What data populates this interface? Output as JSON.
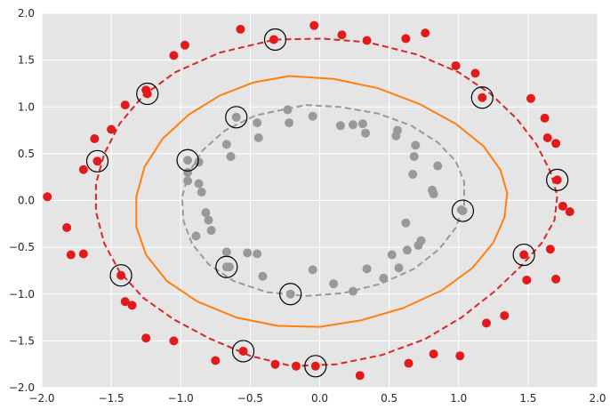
{
  "chart_data": {
    "type": "scatter",
    "title": "",
    "xlabel": "",
    "ylabel": "",
    "xlim": [
      -2.0,
      2.0
    ],
    "ylim": [
      -2.0,
      2.0
    ],
    "grid": true,
    "x_ticks": [
      "−2.0",
      "−1.5",
      "−1.0",
      "−0.5",
      "0.0",
      "0.5",
      "1.0",
      "1.5",
      "2.0"
    ],
    "x_tick_values": [
      -2.0,
      -1.5,
      -1.0,
      -0.5,
      0.0,
      0.5,
      1.0,
      1.5,
      2.0
    ],
    "y_ticks": [
      "2.0",
      "1.5",
      "1.0",
      "0.5",
      "0.0",
      "−0.5",
      "−1.0",
      "−1.5",
      "−2.0"
    ],
    "y_tick_values": [
      2.0,
      1.5,
      1.0,
      0.5,
      0.0,
      -0.5,
      -1.0,
      -1.5,
      -2.0
    ],
    "colors": {
      "background": "#e5e5e5",
      "grid": "#ffffff",
      "outer_points": "#e31a1c",
      "inner_points": "#999999",
      "outer_boundary": "#d62728",
      "decision_boundary": "#ff7f0e",
      "inner_boundary": "#999999",
      "support_vector_ring": "#000000"
    },
    "series": [
      {
        "points": [
          [
            -1.96,
            0.04
          ],
          [
            -1.82,
            -0.29
          ],
          [
            -1.79,
            -0.58
          ],
          [
            -1.7,
            0.33
          ],
          [
            -1.7,
            -0.57
          ],
          [
            -1.62,
            0.66
          ],
          [
            -1.6,
            0.42
          ],
          [
            -1.5,
            0.76
          ],
          [
            -1.43,
            -0.8
          ],
          [
            -1.4,
            1.02
          ],
          [
            -1.4,
            -1.08
          ],
          [
            -1.35,
            -1.12
          ],
          [
            -1.25,
            1.18
          ],
          [
            -1.24,
            1.14
          ],
          [
            -1.25,
            -1.47
          ],
          [
            -1.05,
            1.55
          ],
          [
            -1.05,
            -1.5
          ],
          [
            -0.97,
            1.66
          ],
          [
            -0.75,
            -1.71
          ],
          [
            -0.57,
            1.83
          ],
          [
            -0.55,
            -1.61
          ],
          [
            -0.33,
            1.72
          ],
          [
            -0.32,
            -1.75
          ],
          [
            -0.17,
            -1.77
          ],
          [
            -0.04,
            1.87
          ],
          [
            -0.03,
            -1.77
          ],
          [
            0.16,
            1.77
          ],
          [
            0.29,
            -1.87
          ],
          [
            0.34,
            1.71
          ],
          [
            0.62,
            1.73
          ],
          [
            0.64,
            -1.74
          ],
          [
            0.76,
            1.79
          ],
          [
            0.82,
            -1.64
          ],
          [
            0.98,
            1.44
          ],
          [
            1.01,
            -1.66
          ],
          [
            1.12,
            1.36
          ],
          [
            1.17,
            1.1
          ],
          [
            1.2,
            -1.31
          ],
          [
            1.33,
            -1.23
          ],
          [
            1.47,
            -0.58
          ],
          [
            1.49,
            -0.85
          ],
          [
            1.52,
            1.09
          ],
          [
            1.62,
            0.88
          ],
          [
            1.64,
            0.67
          ],
          [
            1.66,
            -0.52
          ],
          [
            1.7,
            0.61
          ],
          [
            1.7,
            -0.84
          ],
          [
            1.71,
            0.22
          ],
          [
            1.75,
            -0.06
          ],
          [
            1.8,
            -0.12
          ]
        ]
      },
      {
        "points": [
          [
            -0.95,
            0.43
          ],
          [
            -0.95,
            0.3
          ],
          [
            -0.95,
            0.21
          ],
          [
            -0.89,
            -0.38
          ],
          [
            -0.87,
            0.41
          ],
          [
            -0.87,
            0.18
          ],
          [
            -0.85,
            0.09
          ],
          [
            -0.82,
            -0.13
          ],
          [
            -0.8,
            -0.21
          ],
          [
            -0.78,
            -0.32
          ],
          [
            -0.67,
            0.6
          ],
          [
            -0.67,
            -0.55
          ],
          [
            -0.67,
            -0.71
          ],
          [
            -0.65,
            -0.71
          ],
          [
            -0.64,
            0.47
          ],
          [
            -0.6,
            0.89
          ],
          [
            -0.52,
            -0.56
          ],
          [
            -0.45,
            0.83
          ],
          [
            -0.44,
            0.67
          ],
          [
            -0.45,
            -0.57
          ],
          [
            -0.41,
            -0.81
          ],
          [
            -0.23,
            0.97
          ],
          [
            -0.22,
            0.83
          ],
          [
            -0.21,
            -1.0
          ],
          [
            -0.05,
            0.9
          ],
          [
            -0.05,
            -0.74
          ],
          [
            0.1,
            -0.89
          ],
          [
            0.15,
            0.8
          ],
          [
            0.24,
            -0.97
          ],
          [
            0.24,
            0.81
          ],
          [
            0.31,
            0.82
          ],
          [
            0.33,
            0.72
          ],
          [
            0.34,
            -0.73
          ],
          [
            0.46,
            -0.83
          ],
          [
            0.52,
            -0.58
          ],
          [
            0.55,
            0.69
          ],
          [
            0.56,
            0.75
          ],
          [
            0.57,
            -0.72
          ],
          [
            0.62,
            -0.24
          ],
          [
            0.63,
            -0.53
          ],
          [
            0.67,
            0.28
          ],
          [
            0.68,
            0.47
          ],
          [
            0.69,
            0.59
          ],
          [
            0.71,
            -0.48
          ],
          [
            0.73,
            -0.43
          ],
          [
            0.81,
            0.11
          ],
          [
            0.82,
            0.07
          ],
          [
            0.85,
            0.37
          ],
          [
            1.02,
            -0.1
          ],
          [
            1.03,
            -0.11
          ]
        ]
      }
    ],
    "support_vectors": [
      [
        -1.6,
        0.42
      ],
      [
        -1.43,
        -0.8
      ],
      [
        -1.24,
        1.14
      ],
      [
        -0.55,
        -1.61
      ],
      [
        -0.32,
        1.72
      ],
      [
        -0.03,
        -1.77
      ],
      [
        1.17,
        1.1
      ],
      [
        1.47,
        -0.58
      ],
      [
        1.71,
        0.22
      ],
      [
        -0.95,
        0.43
      ],
      [
        -0.67,
        -0.71
      ],
      [
        -0.6,
        0.89
      ],
      [
        -0.21,
        -1.0
      ],
      [
        1.03,
        -0.11
      ]
    ],
    "contours": [
      {
        "style": "dashed",
        "points": [
          [
            -0.32,
            1.72
          ],
          [
            0.02,
            1.73
          ],
          [
            0.35,
            1.69
          ],
          [
            0.7,
            1.56
          ],
          [
            1.0,
            1.37
          ],
          [
            1.23,
            1.14
          ],
          [
            1.42,
            0.87
          ],
          [
            1.56,
            0.6
          ],
          [
            1.66,
            0.31
          ],
          [
            1.71,
            0.05
          ],
          [
            1.69,
            -0.21
          ],
          [
            1.6,
            -0.45
          ],
          [
            1.45,
            -0.7
          ],
          [
            1.26,
            -0.97
          ],
          [
            1.02,
            -1.25
          ],
          [
            0.76,
            -1.48
          ],
          [
            0.45,
            -1.65
          ],
          [
            0.12,
            -1.75
          ],
          [
            -0.2,
            -1.77
          ],
          [
            -0.5,
            -1.66
          ],
          [
            -0.8,
            -1.47
          ],
          [
            -1.05,
            -1.27
          ],
          [
            -1.27,
            -1.04
          ],
          [
            -1.44,
            -0.76
          ],
          [
            -1.55,
            -0.46
          ],
          [
            -1.61,
            -0.12
          ],
          [
            -1.61,
            0.18
          ],
          [
            -1.55,
            0.5
          ],
          [
            -1.44,
            0.82
          ],
          [
            -1.27,
            1.12
          ],
          [
            -1.04,
            1.37
          ],
          [
            -0.72,
            1.58
          ],
          [
            -0.32,
            1.72
          ]
        ]
      },
      {
        "style": "solid",
        "points": [
          [
            -0.22,
            1.33
          ],
          [
            0.1,
            1.3
          ],
          [
            0.42,
            1.2
          ],
          [
            0.72,
            1.03
          ],
          [
            0.98,
            0.82
          ],
          [
            1.18,
            0.58
          ],
          [
            1.3,
            0.33
          ],
          [
            1.35,
            0.08
          ],
          [
            1.33,
            -0.18
          ],
          [
            1.25,
            -0.45
          ],
          [
            1.1,
            -0.72
          ],
          [
            0.88,
            -0.96
          ],
          [
            0.6,
            -1.15
          ],
          [
            0.3,
            -1.28
          ],
          [
            0.0,
            -1.35
          ],
          [
            -0.3,
            -1.34
          ],
          [
            -0.6,
            -1.25
          ],
          [
            -0.88,
            -1.08
          ],
          [
            -1.1,
            -0.86
          ],
          [
            -1.25,
            -0.58
          ],
          [
            -1.32,
            -0.28
          ],
          [
            -1.32,
            0.04
          ],
          [
            -1.26,
            0.36
          ],
          [
            -1.13,
            0.66
          ],
          [
            -0.94,
            0.92
          ],
          [
            -0.72,
            1.12
          ],
          [
            -0.48,
            1.26
          ],
          [
            -0.22,
            1.33
          ]
        ]
      },
      {
        "style": "dashed",
        "points": [
          [
            -0.1,
            1.02
          ],
          [
            0.15,
            1.0
          ],
          [
            0.42,
            0.93
          ],
          [
            0.66,
            0.8
          ],
          [
            0.85,
            0.62
          ],
          [
            0.98,
            0.42
          ],
          [
            1.04,
            0.2
          ],
          [
            1.04,
            -0.05
          ],
          [
            0.98,
            -0.29
          ],
          [
            0.86,
            -0.52
          ],
          [
            0.68,
            -0.73
          ],
          [
            0.44,
            -0.89
          ],
          [
            0.17,
            -0.99
          ],
          [
            -0.1,
            -1.02
          ],
          [
            -0.38,
            -0.98
          ],
          [
            -0.62,
            -0.86
          ],
          [
            -0.8,
            -0.68
          ],
          [
            -0.92,
            -0.46
          ],
          [
            -0.98,
            -0.22
          ],
          [
            -0.99,
            0.04
          ],
          [
            -0.94,
            0.3
          ],
          [
            -0.84,
            0.54
          ],
          [
            -0.68,
            0.75
          ],
          [
            -0.46,
            0.91
          ],
          [
            -0.1,
            1.02
          ]
        ]
      }
    ]
  }
}
